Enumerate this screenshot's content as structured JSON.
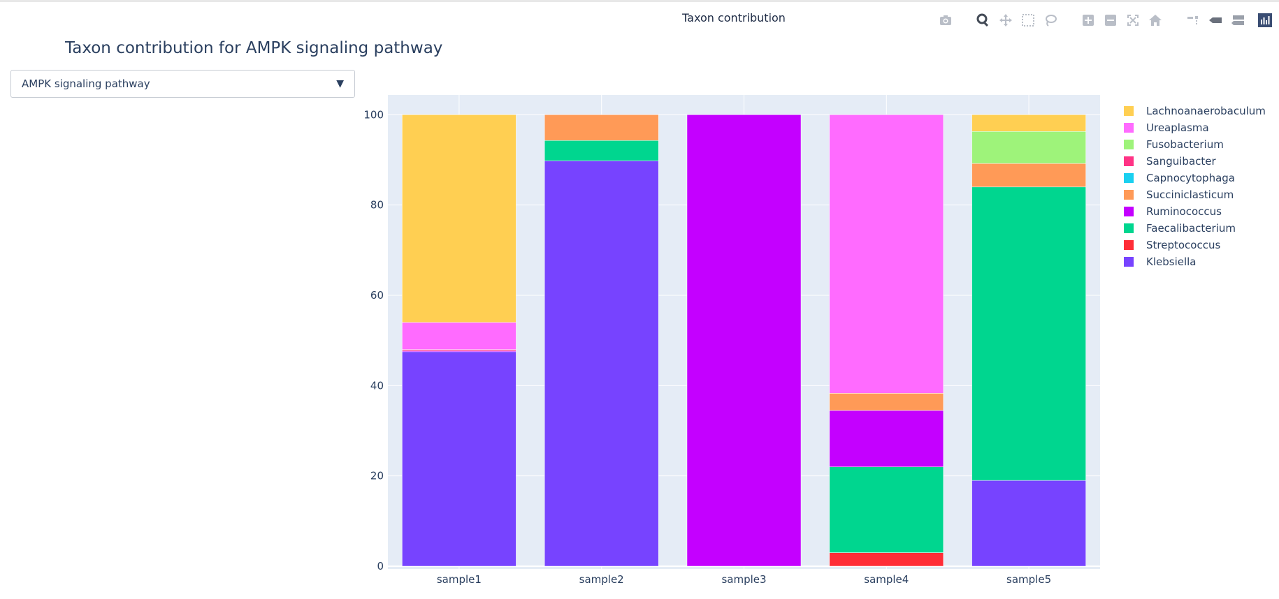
{
  "window": {
    "title": "Taxon contribution"
  },
  "modebar": {
    "buttons": [
      {
        "name": "camera-icon"
      },
      {
        "name": "zoom-icon",
        "active": true
      },
      {
        "name": "pan-icon"
      },
      {
        "name": "box-select-icon"
      },
      {
        "name": "lasso-select-icon"
      },
      {
        "name": "zoom-in-icon"
      },
      {
        "name": "zoom-out-icon"
      },
      {
        "name": "autoscale-icon"
      },
      {
        "name": "reset-axes-icon"
      },
      {
        "name": "spike-lines-icon"
      },
      {
        "name": "hover-closest-icon"
      },
      {
        "name": "hover-compare-icon"
      },
      {
        "name": "plotly-logo-icon"
      }
    ]
  },
  "plot_title": "Taxon contribution for AMPK signaling pathway",
  "dropdown": {
    "selected": "AMPK signaling pathway",
    "arrow": "▼"
  },
  "chart_data": {
    "type": "bar",
    "barmode": "stack",
    "title": "Taxon contribution for AMPK signaling pathway",
    "xlabel": "",
    "ylabel": "",
    "ylim": [
      0,
      105
    ],
    "yticks": [
      0,
      20,
      40,
      60,
      80,
      100
    ],
    "grid": true,
    "legend_position": "right",
    "categories": [
      "sample1",
      "sample2",
      "sample3",
      "sample4",
      "sample5"
    ],
    "series": [
      {
        "name": "Klebsiella",
        "color": "#7743ff",
        "values": [
          47.5,
          89.8,
          0,
          0,
          19
        ]
      },
      {
        "name": "Streptococcus",
        "color": "#ff2d37",
        "values": [
          0,
          0,
          0,
          3,
          0
        ]
      },
      {
        "name": "Faecalibacterium",
        "color": "#00d68f",
        "values": [
          0,
          4.5,
          0,
          19,
          65
        ]
      },
      {
        "name": "Ruminococcus",
        "color": "#c400ff",
        "values": [
          0.2,
          0,
          100,
          12.5,
          0
        ]
      },
      {
        "name": "Succiniclasticum",
        "color": "#ff9a57",
        "values": [
          0,
          5.7,
          0,
          3.8,
          5.2
        ]
      },
      {
        "name": "Capnocytophaga",
        "color": "#1ad0f0",
        "values": [
          0,
          0,
          0,
          0,
          0
        ]
      },
      {
        "name": "Sanguibacter",
        "color": "#ff3385",
        "values": [
          0.3,
          0,
          0,
          0,
          0
        ]
      },
      {
        "name": "Fusobacterium",
        "color": "#9ef37a",
        "values": [
          0,
          0,
          0,
          0,
          7.1
        ]
      },
      {
        "name": "Ureaplasma",
        "color": "#ff6bff",
        "values": [
          6,
          0,
          0,
          61.7,
          0
        ]
      },
      {
        "name": "Lachnoanaerobaculum",
        "color": "#ffcf52",
        "values": [
          46,
          0,
          0,
          0,
          3.7
        ]
      }
    ]
  }
}
